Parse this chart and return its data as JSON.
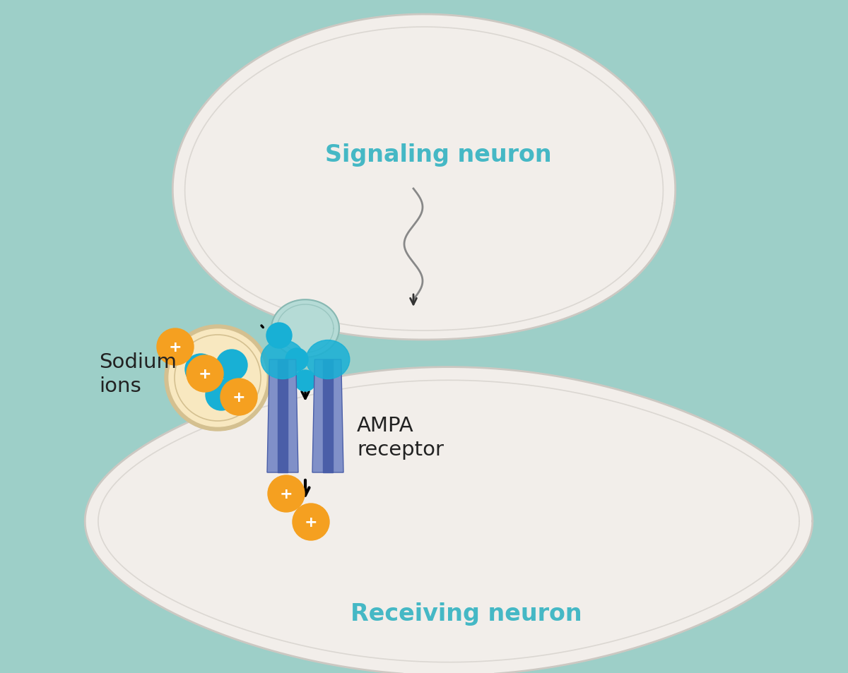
{
  "bg_color": "#9dcfc8",
  "neuron1_fill": "#f2eeea",
  "neuron1_edge": "#ccc8c2",
  "neuron2_fill": "#f2eeea",
  "neuron2_edge": "#ccc8c2",
  "vesicle_fill": "#f8e8c0",
  "vesicle_edge": "#d4c090",
  "synapse_fill": "#b5dbd6",
  "synapse_edge": "#88b8b2",
  "glutamate_color": "#18b0d5",
  "sodium_color": "#f5a020",
  "receptor_light": "#8090c8",
  "receptor_dark": "#4a5ea8",
  "text_teal": "#45b8c5",
  "text_dark": "#222222",
  "signaling_label": "Signaling neuron",
  "receiving_label": "Receiving neuron",
  "ampa_label": "AMPA\nreceptor",
  "sodium_label": "Sodium\nions",
  "title_fontsize": 24,
  "label_fontsize": 21
}
